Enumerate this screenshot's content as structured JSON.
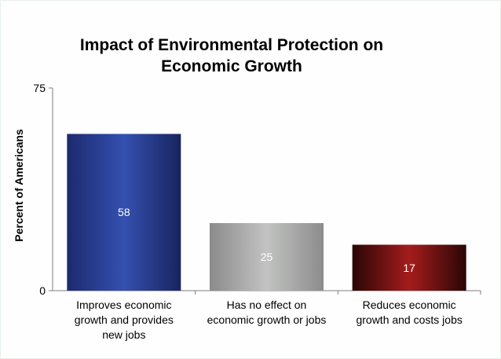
{
  "chart_data": {
    "type": "bar",
    "title": "Impact of Environmental Protection on Economic Growth",
    "xlabel": "",
    "ylabel": "Percent of Americans",
    "ylim": [
      0,
      75
    ],
    "yticks": [
      "0",
      "75"
    ],
    "grid": false,
    "legend": "none",
    "categories": [
      [
        "Improves economic",
        "growth and provides",
        "new jobs"
      ],
      [
        "Has no effect on",
        "economic growth or jobs"
      ],
      [
        "Reduces economic",
        "growth and costs jobs"
      ]
    ],
    "values": [
      58,
      25,
      17
    ],
    "data_labels": [
      "58",
      "25",
      "17"
    ],
    "colors": {
      "bar_1": "#2a3f9a",
      "bar_2": "#a9aaa9",
      "bar_3": "#9a1a1a"
    }
  }
}
